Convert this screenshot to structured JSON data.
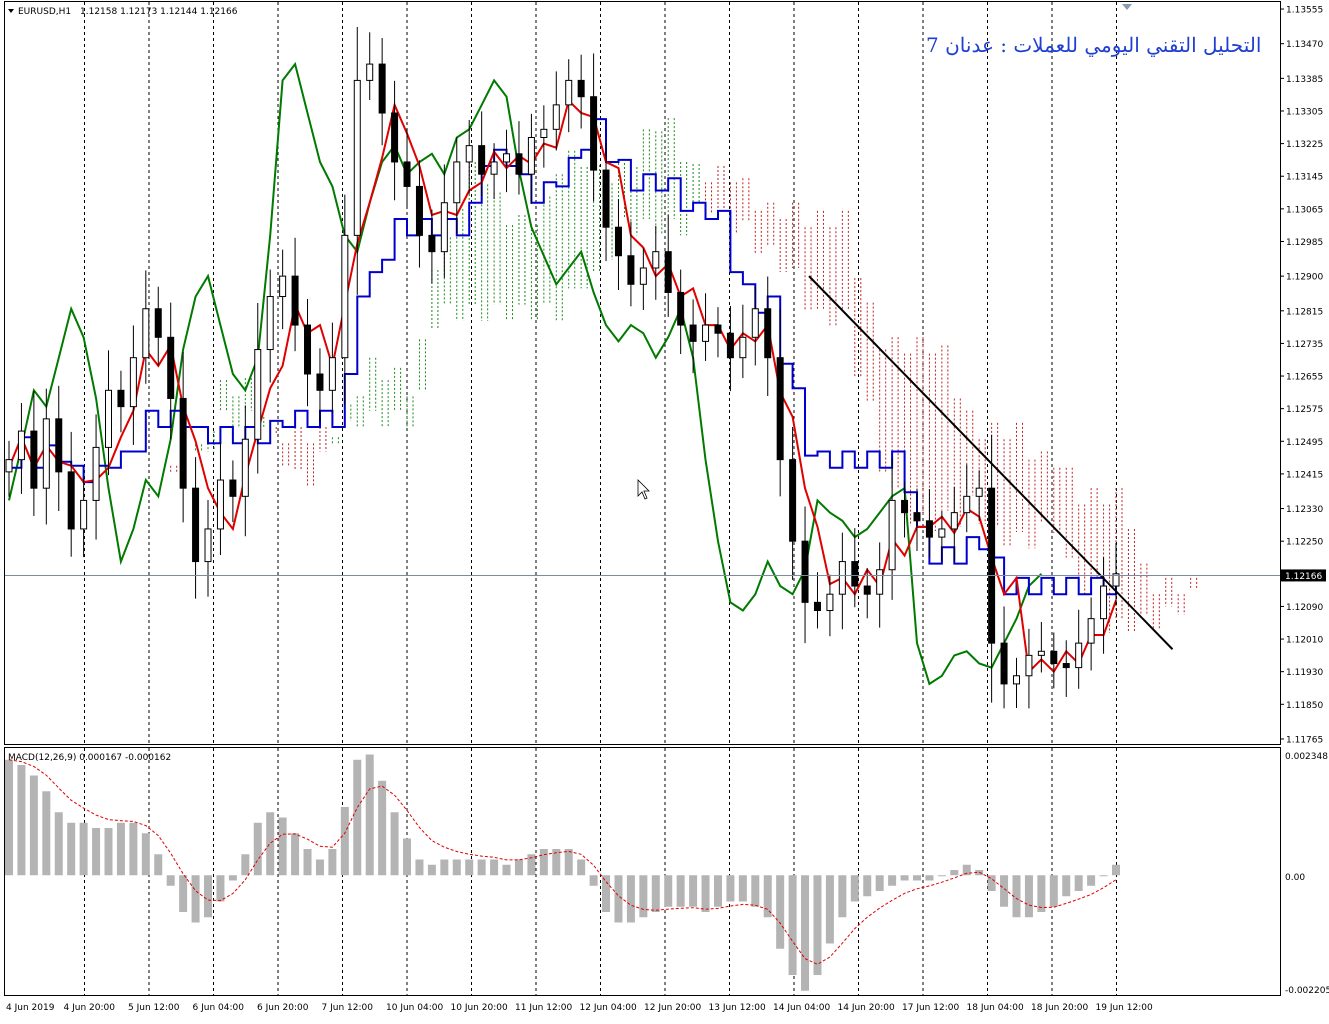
{
  "app": {
    "symbol_label": "EURUSD,H1",
    "ohlc_readout": "1.12158 1.12173 1.12144 1.12166",
    "title": "التحليل التقني اليومي للعملات : عدنان 7"
  },
  "colors": {
    "background": "#ffffff",
    "grid": "#000000",
    "candle": "#000000",
    "tenkan": "#e00000",
    "kijun": "#0000cc",
    "chikou": "#007a00",
    "cloud_bull": "#1a8a1a",
    "cloud_bear": "#c02020",
    "macd_hist": "#b4b4b4",
    "macd_signal": "#e00000",
    "bid_line": "#7a8aa0",
    "trendline": "#000000"
  },
  "macd": {
    "label": "MACD(12,26,9) 0.000167 -0.000162",
    "axis_labels": [
      "0.002348",
      "0.00",
      "-0.002205"
    ]
  },
  "chart_data": {
    "type": "candlestick",
    "indicators": [
      "Ichimoku",
      "MACD(12,26,9)"
    ],
    "price_axis_labels": [
      "1.13555",
      "1.13470",
      "1.13385",
      "1.13305",
      "1.13225",
      "1.13145",
      "1.13065",
      "1.12985",
      "1.12900",
      "1.12815",
      "1.12735",
      "1.12655",
      "1.12575",
      "1.12495",
      "1.12415",
      "1.12330",
      "1.12250",
      "1.12166",
      "1.12090",
      "1.12010",
      "1.11930",
      "1.11850",
      "1.11765"
    ],
    "current_price": "1.12166",
    "ylim": [
      1.1176,
      1.1356
    ],
    "time_labels": [
      "4 Jun 2019",
      "4 Jun 20:00",
      "5 Jun 12:00",
      "6 Jun 04:00",
      "6 Jun 20:00",
      "7 Jun 12:00",
      "10 Jun 04:00",
      "10 Jun 20:00",
      "11 Jun 12:00",
      "12 Jun 04:00",
      "12 Jun 20:00",
      "13 Jun 12:00",
      "14 Jun 04:00",
      "14 Jun 20:00",
      "17 Jun 12:00",
      "18 Jun 04:00",
      "18 Jun 20:00",
      "19 Jun 12:00"
    ],
    "close_approx": [
      1.1245,
      1.1252,
      1.1238,
      1.1255,
      1.1242,
      1.1228,
      1.1235,
      1.1248,
      1.1262,
      1.1258,
      1.127,
      1.1282,
      1.1275,
      1.126,
      1.1238,
      1.122,
      1.1228,
      1.124,
      1.1236,
      1.125,
      1.1272,
      1.1285,
      1.129,
      1.1278,
      1.1266,
      1.1262,
      1.127,
      1.13,
      1.1338,
      1.1342,
      1.133,
      1.1318,
      1.1312,
      1.13,
      1.1296,
      1.1308,
      1.1318,
      1.1322,
      1.1315,
      1.1318,
      1.132,
      1.1315,
      1.1324,
      1.1326,
      1.1332,
      1.1338,
      1.1334,
      1.1316,
      1.1302,
      1.1295,
      1.1288,
      1.1292,
      1.1296,
      1.1286,
      1.1278,
      1.1274,
      1.1278,
      1.1276,
      1.127,
      1.1275,
      1.1282,
      1.127,
      1.1245,
      1.1225,
      1.121,
      1.1208,
      1.1212,
      1.122,
      1.1214,
      1.1212,
      1.1218,
      1.1235,
      1.1232,
      1.123,
      1.1226,
      1.1228,
      1.1232,
      1.1236,
      1.1238,
      1.12,
      1.119,
      1.1192,
      1.1197,
      1.1198,
      1.1195,
      1.1194,
      1.12,
      1.1206,
      1.1214,
      1.1217
    ],
    "trendline": {
      "from": {
        "time": "14 Jun 04:00",
        "price": 1.129
      },
      "to": {
        "time": "19 Jun 12:00",
        "price": 1.11985
      }
    },
    "macd_hist_approx": [
      0.0022,
      0.0021,
      0.0019,
      0.0016,
      0.0012,
      0.001,
      0.001,
      0.0009,
      0.0009,
      0.001,
      0.001,
      0.0008,
      0.0004,
      -0.0002,
      -0.0007,
      -0.0009,
      -0.0008,
      -0.0005,
      -0.0001,
      0.0004,
      0.001,
      0.0012,
      0.0011,
      0.0008,
      0.0005,
      0.0003,
      0.0005,
      0.0013,
      0.0022,
      0.0023,
      0.0018,
      0.0012,
      0.0007,
      0.0003,
      0.0002,
      0.0003,
      0.0003,
      0.0003,
      0.0003,
      0.0003,
      0.0002,
      0.0003,
      0.0004,
      0.0005,
      0.0005,
      0.0005,
      0.0003,
      -0.0002,
      -0.0007,
      -0.0009,
      -0.0009,
      -0.0008,
      -0.0007,
      -0.0006,
      -0.0006,
      -0.0006,
      -0.0007,
      -0.0006,
      -0.0005,
      -0.0005,
      -0.0006,
      -0.0008,
      -0.0014,
      -0.0019,
      -0.0022,
      -0.0019,
      -0.0013,
      -0.0008,
      -0.0005,
      -0.0004,
      -0.0003,
      -0.0002,
      -0.0001,
      -0.0001,
      -0.0001,
      0.0,
      0.0001,
      0.0002,
      0.0001,
      -0.0003,
      -0.0006,
      -0.0008,
      -0.0008,
      -0.0007,
      -0.0006,
      -0.0004,
      -0.0003,
      -0.0002,
      0.0,
      0.0002
    ]
  }
}
